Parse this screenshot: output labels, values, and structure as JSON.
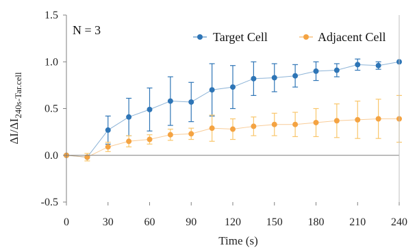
{
  "chart_data": {
    "type": "line",
    "title": "",
    "xlabel": "Time (s)",
    "ylabel_parts": {
      "prefix": "ΔI/ΔI",
      "subscript": "240s-Tar.cell"
    },
    "xlim": [
      0,
      240
    ],
    "ylim": [
      -0.5,
      1.5
    ],
    "xticks": [
      0,
      30,
      60,
      90,
      120,
      150,
      180,
      210,
      240
    ],
    "yticks": [
      -0.5,
      0.0,
      0.5,
      1.0,
      1.5
    ],
    "ytick_labels": [
      "-0.5",
      "0.0",
      "0.5",
      "1.0",
      "1.5"
    ],
    "grid": false,
    "legend_position": "top-right",
    "annotation": "N = 3",
    "x": [
      0,
      15,
      30,
      45,
      60,
      75,
      90,
      105,
      120,
      135,
      150,
      165,
      180,
      195,
      210,
      225,
      240
    ],
    "series": [
      {
        "name": "Target Cell",
        "color": "#2E75B6",
        "values": [
          0.0,
          -0.02,
          0.27,
          0.41,
          0.49,
          0.58,
          0.57,
          0.7,
          0.73,
          0.82,
          0.83,
          0.85,
          0.9,
          0.91,
          0.97,
          0.96,
          1.0
        ],
        "errors": [
          0.0,
          0.0,
          0.15,
          0.2,
          0.23,
          0.26,
          0.21,
          0.28,
          0.23,
          0.18,
          0.15,
          0.12,
          0.1,
          0.07,
          0.06,
          0.04,
          0.0
        ]
      },
      {
        "name": "Adjacent Cell",
        "color": "#F4A342",
        "values": [
          0.0,
          -0.02,
          0.09,
          0.15,
          0.17,
          0.22,
          0.23,
          0.29,
          0.28,
          0.31,
          0.33,
          0.33,
          0.35,
          0.37,
          0.38,
          0.39,
          0.39
        ],
        "errors": [
          0.0,
          0.04,
          0.05,
          0.06,
          0.05,
          0.06,
          0.06,
          0.14,
          0.11,
          0.1,
          0.12,
          0.13,
          0.15,
          0.18,
          0.2,
          0.21,
          0.25
        ]
      }
    ]
  }
}
